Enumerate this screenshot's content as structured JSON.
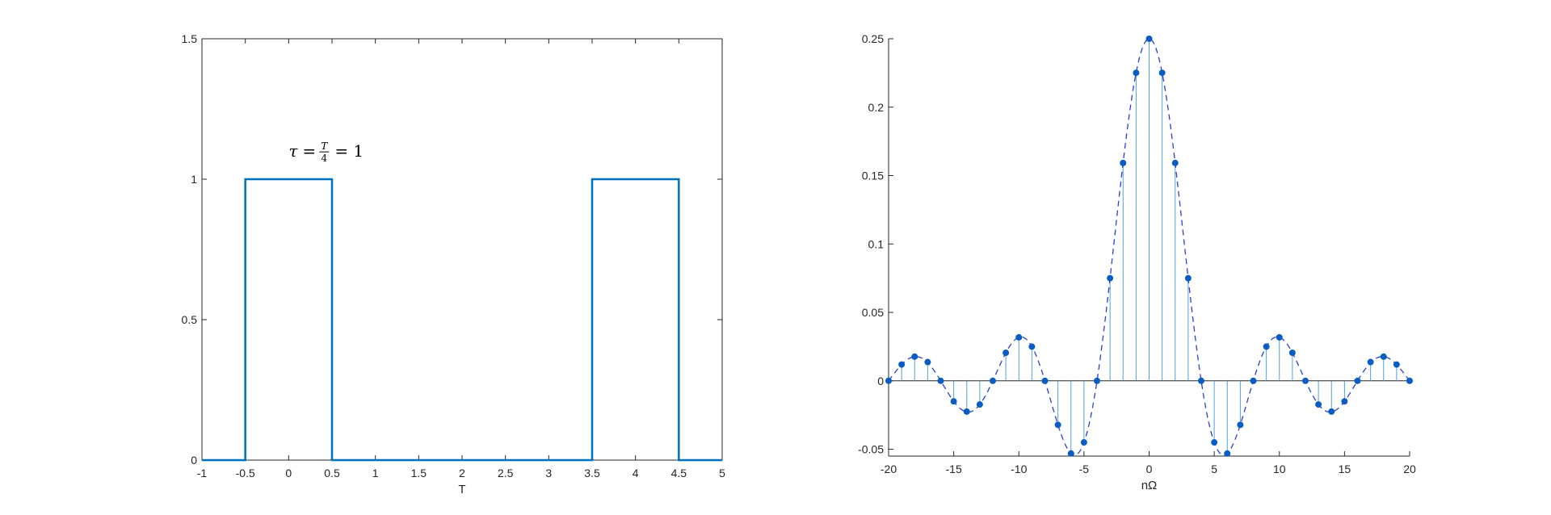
{
  "chart_data": [
    {
      "type": "line",
      "xlabel": "T",
      "ylabel": "",
      "xlim": [
        -1,
        5
      ],
      "ylim": [
        0,
        1.5
      ],
      "xticks": [
        "-1",
        "-0.5",
        "0",
        "0.5",
        "1",
        "1.5",
        "2",
        "2.5",
        "3",
        "3.5",
        "4",
        "4.5",
        "5"
      ],
      "yticks": [
        "0",
        "0.5",
        "1",
        "1.5"
      ],
      "series": [
        {
          "color": "#0072bd",
          "x": [
            -1,
            -0.5,
            -0.5,
            0.5,
            0.5,
            3.5,
            3.5,
            4.5,
            4.5,
            5
          ],
          "y": [
            0,
            0,
            1,
            1,
            0,
            0,
            1,
            1,
            0,
            0
          ]
        }
      ],
      "annotation": {
        "tau": "τ",
        "eq1": "=",
        "num": "T",
        "den": "4",
        "eq2": "=",
        "val": "1",
        "at": [
          0,
          1.08
        ]
      }
    },
    {
      "type": "stem",
      "xlabel": "nΩ",
      "ylabel": "",
      "xlim": [
        -20,
        20
      ],
      "ylim": [
        -0.055,
        0.25
      ],
      "xticks": [
        "-20",
        "-15",
        "-10",
        "-5",
        "0",
        "5",
        "10",
        "15",
        "20"
      ],
      "yticks": [
        "-0.05",
        "0",
        "0.05",
        "0.1",
        "0.15",
        "0.2",
        "0.25"
      ],
      "stem_color": "#4aa3df",
      "marker_color": "#0a5dc2",
      "envelope_color": "#2a3fd8",
      "n": [
        -20,
        -19,
        -18,
        -17,
        -16,
        -15,
        -14,
        -13,
        -12,
        -11,
        -10,
        -9,
        -8,
        -7,
        -6,
        -5,
        -4,
        -3,
        -2,
        -1,
        0,
        1,
        2,
        3,
        4,
        5,
        6,
        7,
        8,
        9,
        10,
        11,
        12,
        13,
        14,
        15,
        16,
        17,
        18,
        19,
        20
      ],
      "values": [
        0,
        0.0119,
        0.0177,
        0.0137,
        0,
        -0.015,
        -0.0225,
        -0.0173,
        0,
        0.0205,
        0.0318,
        0.025,
        0,
        -0.0322,
        -0.0531,
        -0.045,
        0,
        0.075,
        0.1592,
        0.2251,
        0.25,
        0.2251,
        0.1592,
        0.075,
        0,
        -0.045,
        -0.0531,
        -0.0322,
        0,
        0.025,
        0.0318,
        0.0205,
        0,
        -0.0173,
        -0.0225,
        -0.015,
        0,
        0.0137,
        0.0177,
        0.0119,
        0
      ]
    }
  ]
}
